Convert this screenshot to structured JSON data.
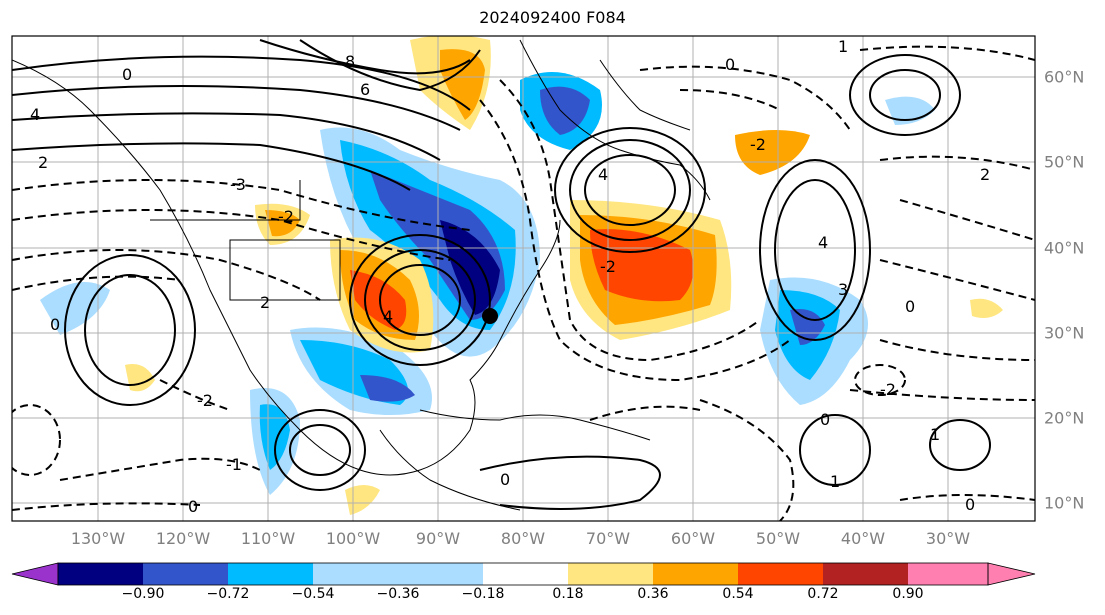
{
  "title": "2024092400 F084",
  "lon_labels": [
    "130°W",
    "120°W",
    "110°W",
    "100°W",
    "90°W",
    "80°W",
    "70°W",
    "60°W",
    "50°W",
    "40°W",
    "30°W"
  ],
  "lat_labels": [
    "60°N",
    "50°N",
    "40°N",
    "30°N",
    "20°N",
    "10°N"
  ],
  "colorbar": {
    "ticks": [
      "−0.90",
      "−0.72",
      "−0.54",
      "−0.36",
      "−0.18",
      "0.18",
      "0.36",
      "0.54",
      "0.72",
      "0.90"
    ],
    "colors": [
      "#9933cc",
      "#000080",
      "#3355cc",
      "#00bbff",
      "#aaddff",
      "#ffffff",
      "#ffe680",
      "#ffa500",
      "#ff4500",
      "#b22222",
      "#ff80b0"
    ]
  },
  "contour_labels": [
    "0",
    "2",
    "4",
    "6",
    "8",
    "-1",
    "-2",
    "-3",
    "1",
    "3"
  ],
  "marker": "black-dot"
}
